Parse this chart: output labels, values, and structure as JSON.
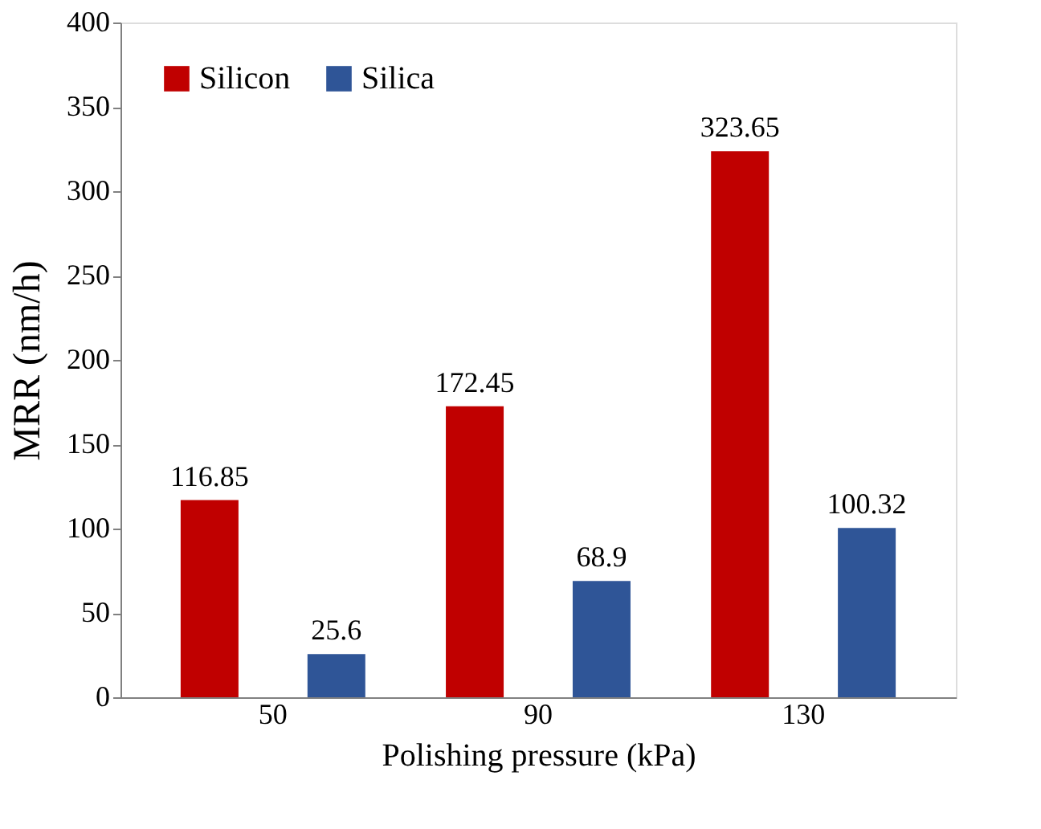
{
  "chart_data": {
    "type": "bar",
    "xlabel": "Polishing pressure (kPa)",
    "ylabel": "MRR (nm/h)",
    "categories": [
      "50",
      "90",
      "130"
    ],
    "series": [
      {
        "name": "Silicon",
        "color": "#c00000",
        "values": [
          116.85,
          172.45,
          323.65
        ]
      },
      {
        "name": "Silica",
        "color": "#2f5597",
        "values": [
          25.6,
          68.9,
          100.32
        ]
      }
    ],
    "ylim": [
      0,
      400
    ],
    "yticks": [
      0,
      50,
      100,
      150,
      200,
      250,
      300,
      350,
      400
    ],
    "data_labels": true,
    "grid": false,
    "legend": "top left"
  }
}
